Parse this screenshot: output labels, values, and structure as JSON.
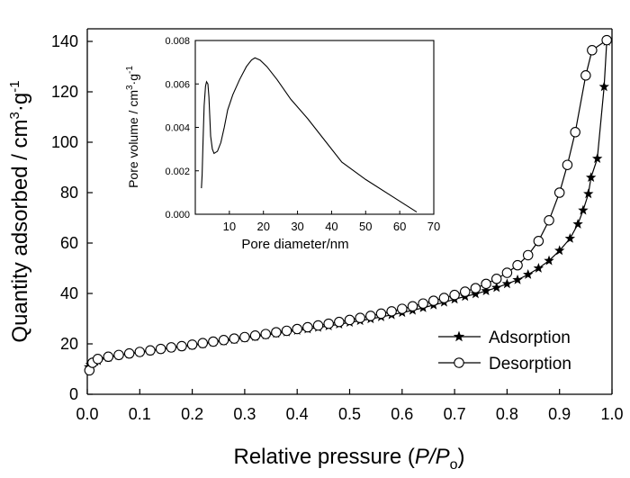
{
  "chart_data": [
    {
      "type": "line",
      "xlabel_parts": [
        "Relative pressure (",
        "P",
        "/",
        "P",
        "o",
        ")"
      ],
      "ylabel_parts": [
        "Quantity adsorbed / cm",
        "3",
        "·g",
        "-1"
      ],
      "xlim": [
        0.0,
        1.0
      ],
      "ylim": [
        0,
        145
      ],
      "xticks": [
        "0.0",
        "0.1",
        "0.2",
        "0.3",
        "0.4",
        "0.5",
        "0.6",
        "0.7",
        "0.8",
        "0.9",
        "1.0"
      ],
      "yticks": [
        "0",
        "20",
        "40",
        "60",
        "80",
        "100",
        "120",
        "140"
      ],
      "legend_position": "bottom-right",
      "series": [
        {
          "name": "Adsorption",
          "marker": "star",
          "points": [
            [
              0.003,
              10.8
            ],
            [
              0.006,
              11.8
            ],
            [
              0.01,
              12.6
            ],
            [
              0.015,
              13.0
            ],
            [
              0.02,
              13.3
            ],
            [
              0.04,
              14.6
            ],
            [
              0.06,
              15.4
            ],
            [
              0.08,
              16.0
            ],
            [
              0.1,
              16.6
            ],
            [
              0.12,
              17.2
            ],
            [
              0.14,
              17.8
            ],
            [
              0.16,
              18.4
            ],
            [
              0.18,
              18.9
            ],
            [
              0.2,
              19.4
            ],
            [
              0.22,
              20.0
            ],
            [
              0.24,
              20.6
            ],
            [
              0.26,
              21.1
            ],
            [
              0.28,
              21.7
            ],
            [
              0.3,
              22.3
            ],
            [
              0.32,
              22.9
            ],
            [
              0.34,
              23.5
            ],
            [
              0.36,
              24.1
            ],
            [
              0.38,
              24.7
            ],
            [
              0.4,
              25.3
            ],
            [
              0.42,
              25.9
            ],
            [
              0.44,
              26.5
            ],
            [
              0.46,
              27.1
            ],
            [
              0.48,
              27.8
            ],
            [
              0.5,
              28.5
            ],
            [
              0.52,
              29.2
            ],
            [
              0.54,
              29.9
            ],
            [
              0.56,
              30.7
            ],
            [
              0.58,
              31.5
            ],
            [
              0.6,
              32.4
            ],
            [
              0.62,
              33.3
            ],
            [
              0.64,
              34.3
            ],
            [
              0.66,
              35.4
            ],
            [
              0.68,
              36.5
            ],
            [
              0.7,
              37.7
            ],
            [
              0.72,
              38.8
            ],
            [
              0.74,
              39.8
            ],
            [
              0.76,
              41.0
            ],
            [
              0.78,
              42.3
            ],
            [
              0.8,
              43.8
            ],
            [
              0.82,
              45.4
            ],
            [
              0.84,
              47.5
            ],
            [
              0.86,
              50.0
            ],
            [
              0.88,
              53.0
            ],
            [
              0.9,
              57.0
            ],
            [
              0.92,
              61.8
            ],
            [
              0.935,
              67.5
            ],
            [
              0.945,
              73.0
            ],
            [
              0.955,
              79.5
            ],
            [
              0.96,
              86.0
            ],
            [
              0.972,
              93.5
            ],
            [
              0.985,
              122.0
            ],
            [
              0.99,
              140.0
            ]
          ]
        },
        {
          "name": "Desorption",
          "marker": "circle",
          "points": [
            [
              0.004,
              9.5
            ],
            [
              0.01,
              12.5
            ],
            [
              0.02,
              14.0
            ],
            [
              0.04,
              14.9
            ],
            [
              0.06,
              15.6
            ],
            [
              0.08,
              16.2
            ],
            [
              0.1,
              16.8
            ],
            [
              0.12,
              17.4
            ],
            [
              0.14,
              18.0
            ],
            [
              0.16,
              18.6
            ],
            [
              0.18,
              19.1
            ],
            [
              0.2,
              19.7
            ],
            [
              0.22,
              20.3
            ],
            [
              0.24,
              20.9
            ],
            [
              0.26,
              21.5
            ],
            [
              0.28,
              22.1
            ],
            [
              0.3,
              22.7
            ],
            [
              0.32,
              23.3
            ],
            [
              0.34,
              23.9
            ],
            [
              0.36,
              24.6
            ],
            [
              0.38,
              25.2
            ],
            [
              0.4,
              25.9
            ],
            [
              0.42,
              26.6
            ],
            [
              0.44,
              27.3
            ],
            [
              0.46,
              28.0
            ],
            [
              0.48,
              28.7
            ],
            [
              0.5,
              29.5
            ],
            [
              0.52,
              30.3
            ],
            [
              0.54,
              31.1
            ],
            [
              0.56,
              32.0
            ],
            [
              0.58,
              32.9
            ],
            [
              0.6,
              33.9
            ],
            [
              0.62,
              34.9
            ],
            [
              0.64,
              36.0
            ],
            [
              0.66,
              37.1
            ],
            [
              0.68,
              38.2
            ],
            [
              0.7,
              39.4
            ],
            [
              0.72,
              40.7
            ],
            [
              0.74,
              42.1
            ],
            [
              0.76,
              43.8
            ],
            [
              0.78,
              45.8
            ],
            [
              0.8,
              48.2
            ],
            [
              0.82,
              51.2
            ],
            [
              0.84,
              55.2
            ],
            [
              0.86,
              60.8
            ],
            [
              0.88,
              69.0
            ],
            [
              0.9,
              80.0
            ],
            [
              0.915,
              91.0
            ],
            [
              0.93,
              104.0
            ],
            [
              0.95,
              126.5
            ],
            [
              0.962,
              136.5
            ],
            [
              0.99,
              140.5
            ]
          ]
        }
      ]
    },
    {
      "type": "line",
      "xlabel": "Pore diameter/nm",
      "ylabel_parts": [
        "Pore volume / cm",
        "3",
        "·g",
        "-1"
      ],
      "xlim": [
        0,
        70
      ],
      "ylim": [
        0,
        0.008
      ],
      "xticks": [
        "10",
        "20",
        "30",
        "40",
        "50",
        "60",
        "70"
      ],
      "yticks": [
        "0.000",
        "0.002",
        "0.004",
        "0.006",
        "0.008"
      ],
      "series": [
        {
          "points": [
            [
              1.8,
              0.0012
            ],
            [
              2.0,
              0.0018
            ],
            [
              2.3,
              0.0035
            ],
            [
              2.6,
              0.005
            ],
            [
              3.0,
              0.0059
            ],
            [
              3.3,
              0.0061
            ],
            [
              3.7,
              0.006
            ],
            [
              4.0,
              0.0054
            ],
            [
              4.5,
              0.0036
            ],
            [
              5.0,
              0.003
            ],
            [
              5.5,
              0.0028
            ],
            [
              6.5,
              0.0029
            ],
            [
              7.5,
              0.0033
            ],
            [
              8.5,
              0.004
            ],
            [
              9.5,
              0.0048
            ],
            [
              11,
              0.0055
            ],
            [
              13,
              0.0062
            ],
            [
              15,
              0.0068
            ],
            [
              16.5,
              0.0071
            ],
            [
              17.5,
              0.0072
            ],
            [
              19,
              0.0071
            ],
            [
              21,
              0.0068
            ],
            [
              24,
              0.0062
            ],
            [
              28,
              0.0053
            ],
            [
              33,
              0.0044
            ],
            [
              38,
              0.0034
            ],
            [
              43,
              0.0024
            ],
            [
              50,
              0.0016
            ],
            [
              58,
              0.0008
            ],
            [
              65,
              0.0001
            ]
          ]
        }
      ]
    }
  ]
}
